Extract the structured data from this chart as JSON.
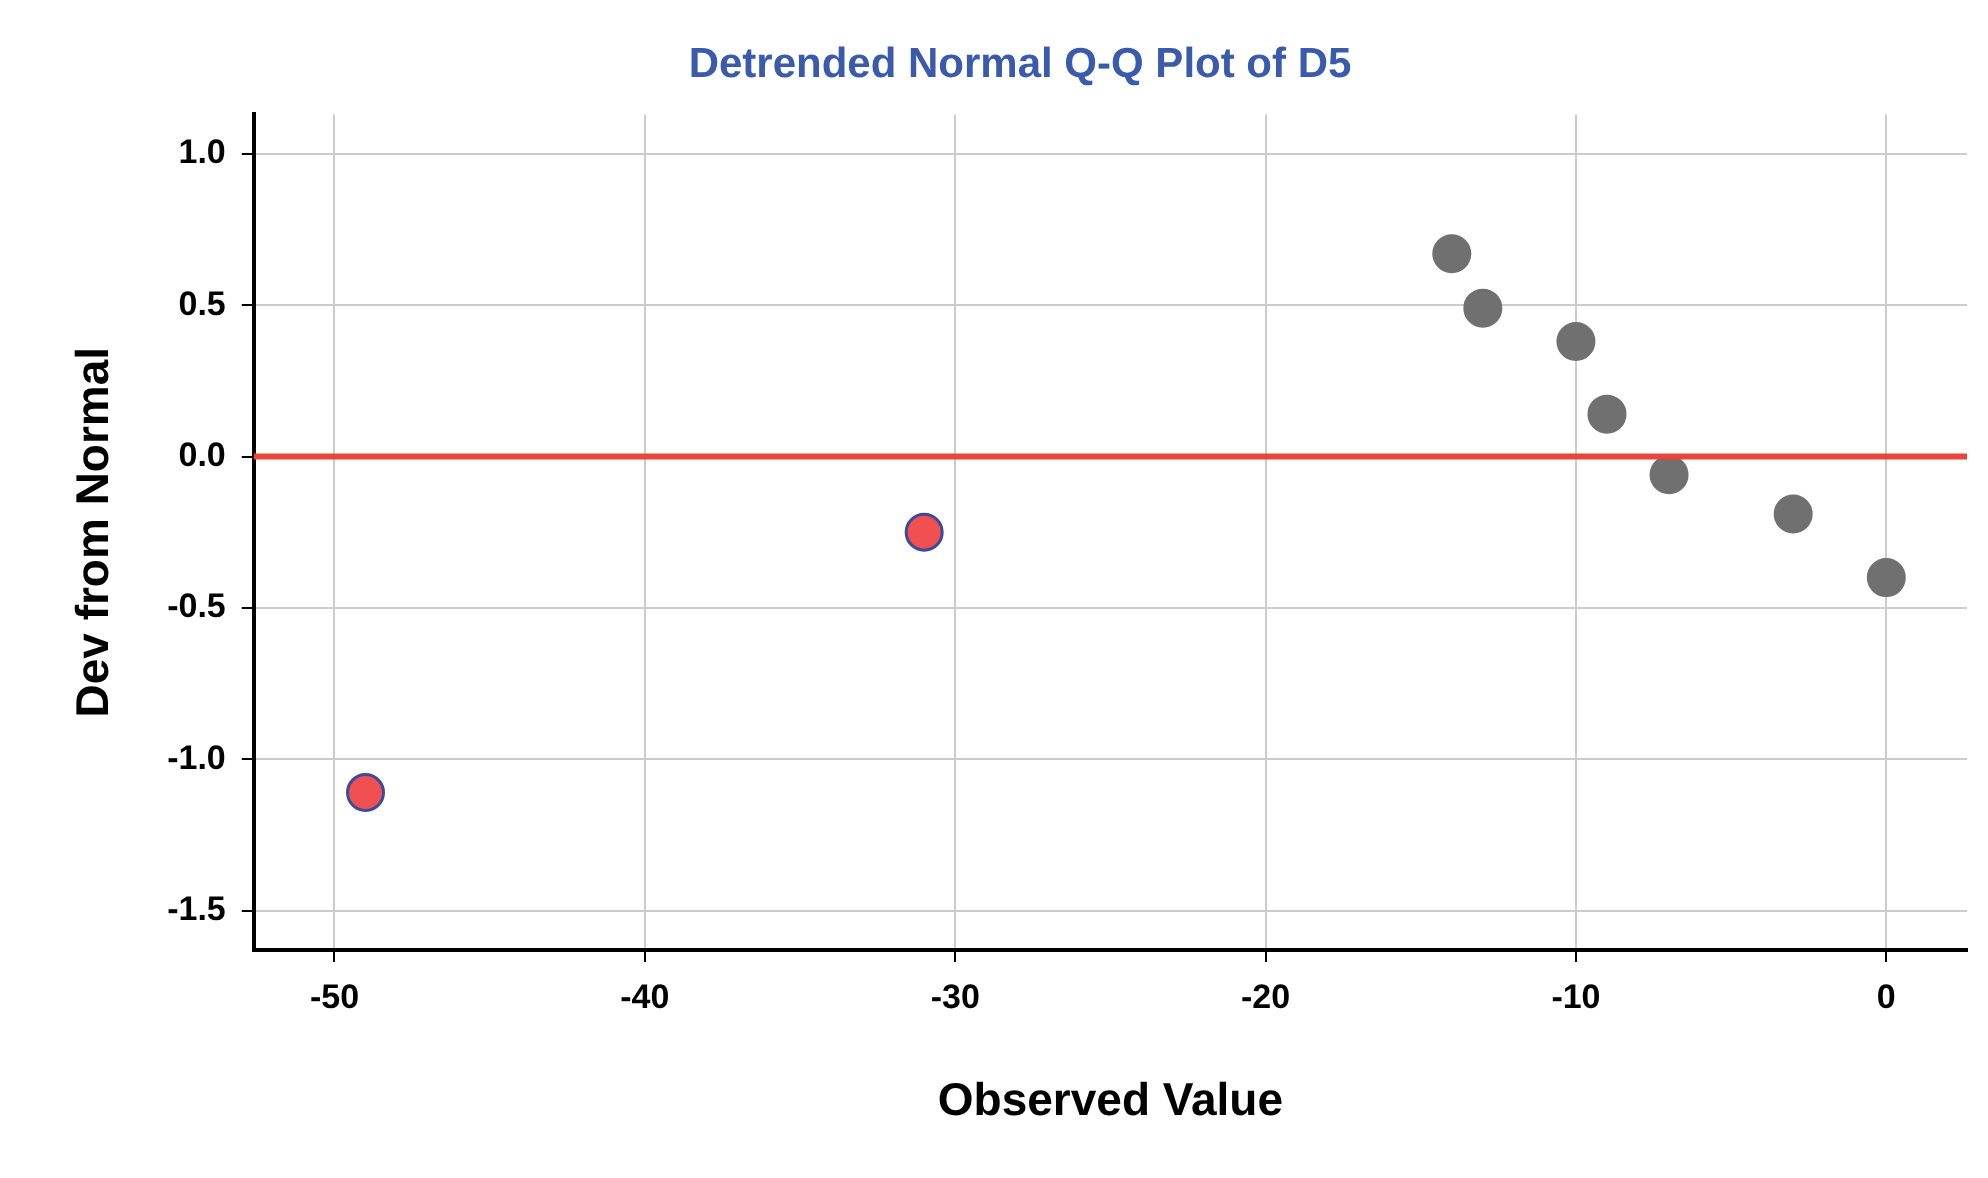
{
  "chart_data": {
    "type": "scatter",
    "title": "Detrended Normal Q-Q Plot of D5",
    "xlabel": "Observed Value",
    "ylabel": "Dev from Normal",
    "series": [
      {
        "color": "#707070",
        "x": [
          -14,
          -13,
          -10,
          -9,
          -7,
          -3,
          0
        ],
        "values": [
          0.67,
          0.49,
          0.38,
          0.14,
          -0.06,
          -0.19,
          -0.4
        ]
      },
      {
        "color": "#f05050",
        "x": [
          -49,
          -31
        ],
        "values": [
          -1.11,
          -0.25
        ]
      }
    ],
    "xlim": [
      -52.6,
      2.6
    ],
    "xticks": [
      -50,
      -40,
      -30,
      -20,
      -10,
      0
    ],
    "ylim": [
      -1.63,
      1.13
    ],
    "yticks": [
      -1.5,
      {
        "value": -1,
        "label": "-1.0"
      },
      -0.5,
      {
        "value": 0,
        "label": "0.0"
      },
      0.5,
      {
        "value": 1,
        "label": "1.0"
      }
    ],
    "ref_lines": [
      {
        "axis": "y",
        "value": 0,
        "color": "#e8453c"
      }
    ],
    "grid": true,
    "legend": false,
    "marker": "circle"
  }
}
